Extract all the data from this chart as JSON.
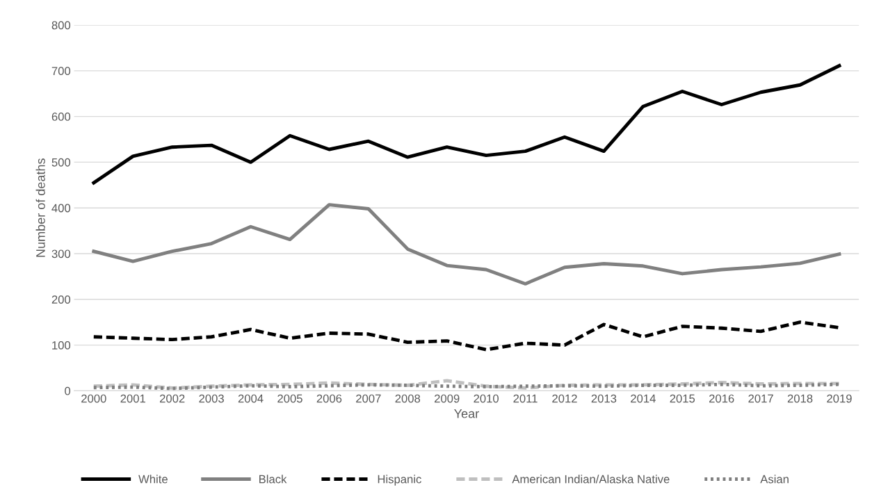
{
  "chart_data": {
    "type": "line",
    "xlabel": "Year",
    "ylabel": "Number of deaths",
    "categories": [
      "2000",
      "2001",
      "2002",
      "2003",
      "2004",
      "2005",
      "2006",
      "2007",
      "2008",
      "2009",
      "2010",
      "2011",
      "2012",
      "2013",
      "2014",
      "2015",
      "2016",
      "2017",
      "2018",
      "2019"
    ],
    "series": [
      {
        "name": "White",
        "color": "#000000",
        "line_style": "solid",
        "values": [
          455,
          513,
          533,
          537,
          500,
          558,
          528,
          546,
          511,
          533,
          515,
          524,
          555,
          524,
          622,
          655,
          626,
          653,
          669,
          711
        ]
      },
      {
        "name": "Black",
        "color": "#808080",
        "line_style": "solid",
        "values": [
          305,
          283,
          305,
          322,
          359,
          331,
          407,
          398,
          310,
          274,
          265,
          234,
          270,
          278,
          273,
          256,
          265,
          271,
          279,
          299
        ]
      },
      {
        "name": "Hispanic",
        "color": "#000000",
        "line_style": "dashed",
        "values": [
          118,
          115,
          112,
          118,
          134,
          115,
          126,
          124,
          106,
          109,
          90,
          104,
          100,
          145,
          118,
          141,
          137,
          130,
          150,
          138
        ]
      },
      {
        "name": "American Indian/Alaska Native",
        "color": "#bfbfbf",
        "line_style": "dashed",
        "values": [
          10,
          13,
          6,
          10,
          13,
          14,
          17,
          14,
          12,
          22,
          10,
          6,
          12,
          13,
          13,
          15,
          18,
          15,
          16,
          16
        ]
      },
      {
        "name": "Asian",
        "color": "#7f7f7f",
        "line_style": "dotted",
        "values": [
          7,
          8,
          5,
          8,
          11,
          9,
          11,
          13,
          12,
          10,
          9,
          10,
          11,
          10,
          12,
          12,
          14,
          11,
          12,
          14
        ]
      }
    ],
    "ylim": [
      0,
      800
    ],
    "yticks": [
      0,
      100,
      200,
      300,
      400,
      500,
      600,
      700,
      800
    ],
    "grid": "y",
    "legend": "bottom",
    "marker": "none"
  }
}
